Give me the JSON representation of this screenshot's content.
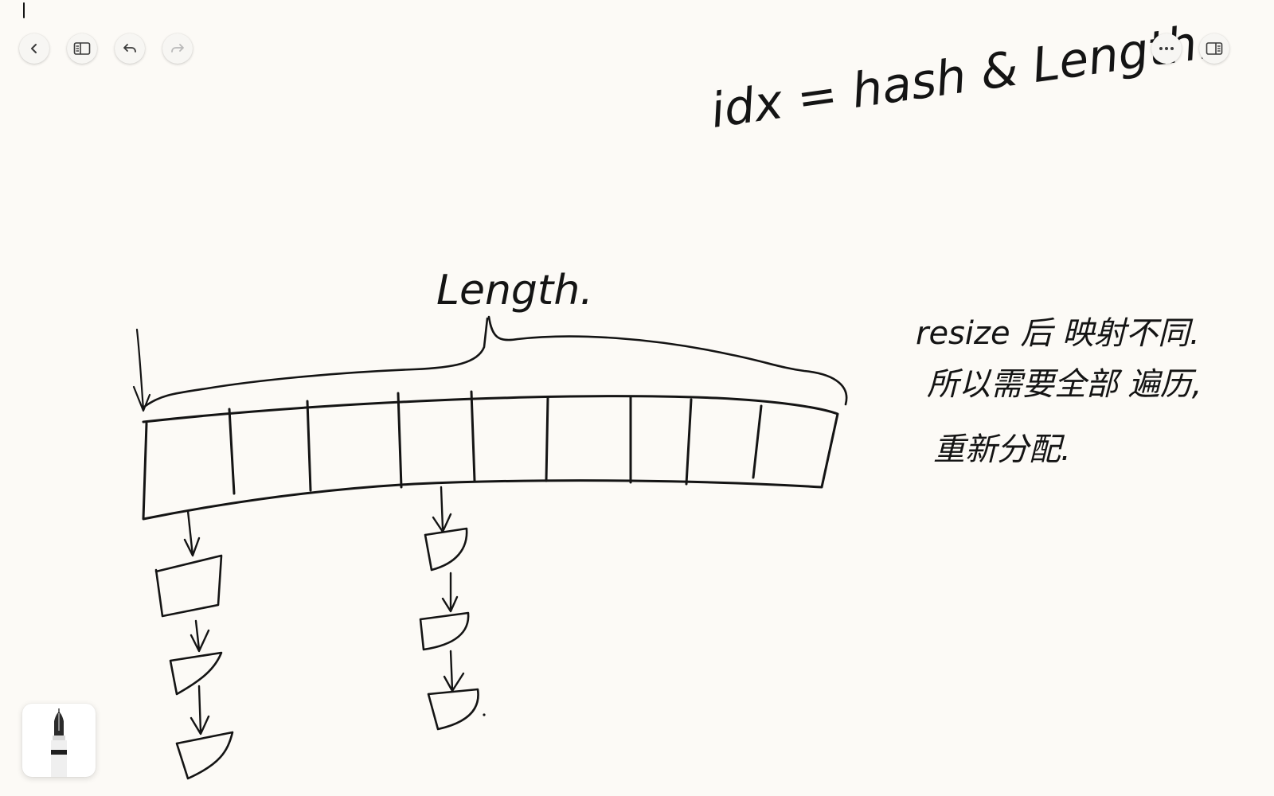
{
  "toolbar": {
    "left": [
      {
        "icon": "chevron-left-icon",
        "action": "back"
      },
      {
        "icon": "sidebar-icon",
        "action": "toggle sidebar"
      },
      {
        "icon": "undo-icon",
        "action": "undo"
      },
      {
        "icon": "redo-icon",
        "action": "redo"
      }
    ],
    "right": [
      {
        "icon": "more-icon",
        "action": "more options"
      },
      {
        "icon": "split-view-icon",
        "action": "split view"
      }
    ]
  },
  "note": {
    "formula": "idx = hash & Length..",
    "array_label": "Length.",
    "resize_line_1": "resize 后 映射不同.",
    "resize_line_2": "所以需要全部 遍历,",
    "resize_line_3": "重新分配."
  },
  "diagram": {
    "array_cells": 9,
    "bucket_chains": [
      {
        "cell_index": 0,
        "nodes": 3
      },
      {
        "cell_index": 3,
        "nodes": 3
      }
    ]
  },
  "tool": {
    "icon": "fountain-pen-icon"
  },
  "colors": {
    "background": "#fcfaf6",
    "ink": "#141414",
    "button_bg": "#f7f6f3",
    "icon": "#3a3a3a",
    "icon_disabled": "#b9b9b9"
  }
}
